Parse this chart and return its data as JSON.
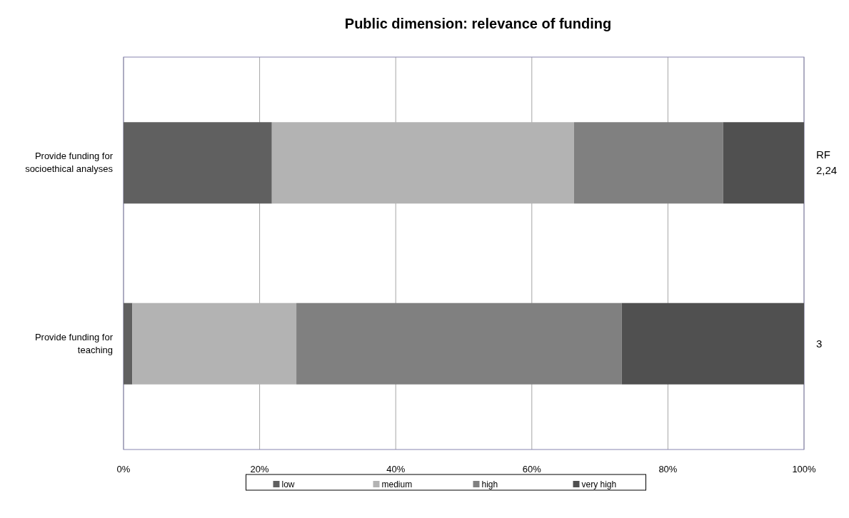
{
  "chart_data": {
    "type": "bar",
    "orientation": "horizontal",
    "stacked": true,
    "title": "Public dimension: relevance of funding",
    "categories": [
      "Provide funding for socioethical analyses",
      "Provide funding for teaching"
    ],
    "series": [
      {
        "name": "low",
        "color": "#606060",
        "values": [
          21.8,
          1.3
        ]
      },
      {
        "name": "medium",
        "color": "#b3b3b3",
        "values": [
          44.4,
          24.1
        ]
      },
      {
        "name": "high",
        "color": "#808080",
        "values": [
          21.9,
          47.8
        ]
      },
      {
        "name": "very high",
        "color": "#505050",
        "values": [
          11.9,
          26.8
        ]
      }
    ],
    "xlim": [
      0,
      100
    ],
    "xticks": [
      {
        "value": 0,
        "label": "0%"
      },
      {
        "value": 20,
        "label": "20%"
      },
      {
        "value": 40,
        "label": "40%"
      },
      {
        "value": 60,
        "label": "60%"
      },
      {
        "value": 80,
        "label": "80%"
      },
      {
        "value": 100,
        "label": "100%"
      }
    ],
    "grid": "x",
    "legend": "bottom",
    "annotations": [
      "RF\n2,24",
      "3"
    ]
  }
}
